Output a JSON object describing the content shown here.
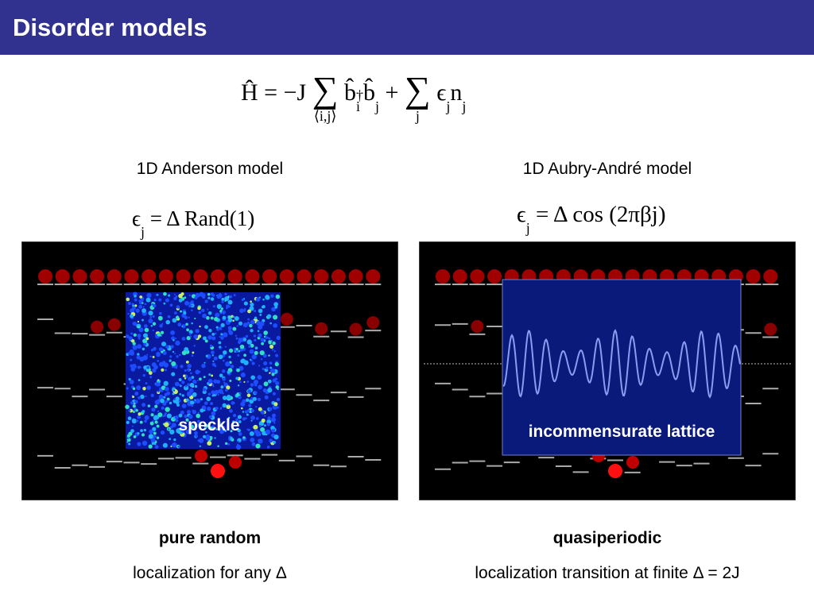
{
  "header": {
    "title": "Disorder models"
  },
  "hamiltonian": [
    {
      "t": "Ĥ = −J "
    },
    {
      "t": "∑",
      "under": "⟨i,j⟩"
    },
    {
      "t": " b̂",
      "sup": "†",
      "sub": "i"
    },
    {
      "t": "b̂",
      "sub": "j"
    },
    {
      "t": " + "
    },
    {
      "t": "∑",
      "under": "j"
    },
    {
      "t": " ϵ",
      "sub": "j"
    },
    {
      "t": "n",
      "sub": "j"
    }
  ],
  "panels": [
    {
      "heading": "1D Anderson model",
      "formula": [
        {
          "t": "ϵ",
          "sub": "j"
        },
        {
          "t": " = Δ Rand(1)"
        }
      ],
      "overlay_label": "speckle",
      "caption_bold": "pure random",
      "caption": "localization for any Δ"
    },
    {
      "heading": "1D Aubry-André model",
      "formula": [
        {
          "t": "ϵ",
          "sub": "j"
        },
        {
          "t": " = Δ cos (2πβj)"
        }
      ],
      "overlay_label": "incommensurate lattice",
      "caption_bold": "quasiperiodic",
      "caption": "localization transition at finite Δ = 2J"
    }
  ]
}
